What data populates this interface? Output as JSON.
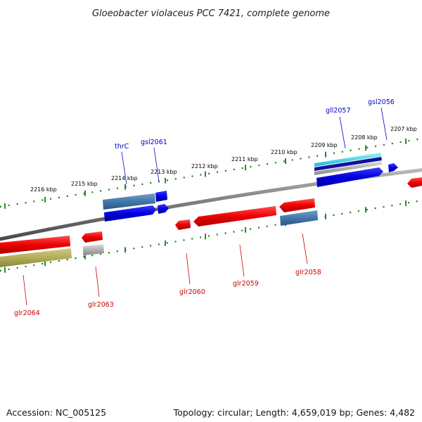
{
  "title": "Gloeobacter violaceus PCC 7421, complete genome",
  "footer": {
    "accession": "Accession: NC_005125",
    "summary": "Topology: circular; Length: 4,659,019 bp; Genes: 4,482"
  },
  "colors": {
    "forward_label": "#0000cc",
    "reverse_label": "#cc0000",
    "tick": "#1a7a1a",
    "backbone": "#808080"
  },
  "scale_labels": [
    "2216 kbp",
    "2215 kbp",
    "2214 kbp",
    "2213 kbp",
    "2212 kbp",
    "2211 kbp",
    "2210 kbp",
    "2209 kbp",
    "2208 kbp",
    "2207 kbp"
  ],
  "forward_genes": [
    "thrC",
    "gsl2061",
    "gll2057",
    "gsl2056"
  ],
  "reverse_genes": [
    "glr2064",
    "glr2063",
    "glr2060",
    "glr2059",
    "glr2058"
  ]
}
